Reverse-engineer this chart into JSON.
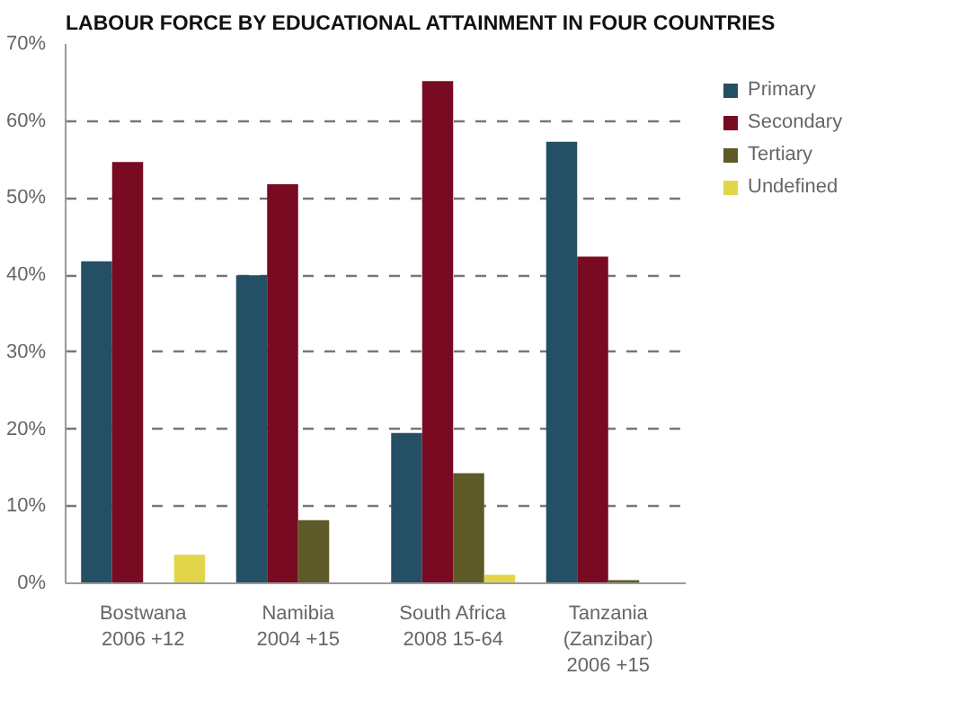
{
  "chart_data": {
    "type": "bar",
    "title": "LABOUR FORCE BY EDUCATIONAL ATTAINMENT IN FOUR COUNTRIES",
    "categories": [
      "Bostwana\n2006 +12",
      "Namibia\n2004 +15",
      "South Africa\n2008 15-64",
      "Tanzania\n(Zanzibar)\n2006 +15"
    ],
    "series": [
      {
        "name": "Primary",
        "color": "#244f64",
        "values": [
          41.8,
          40.0,
          19.5,
          57.3
        ]
      },
      {
        "name": "Secondary",
        "color": "#780a22",
        "values": [
          54.7,
          51.8,
          65.2,
          42.4
        ]
      },
      {
        "name": "Tertiary",
        "color": "#5d5a27",
        "values": [
          null,
          8.2,
          14.3,
          0.4
        ]
      },
      {
        "name": "Undefined",
        "color": "#e2d54a",
        "values": [
          3.7,
          null,
          1.1,
          null
        ]
      }
    ],
    "ylim": [
      0,
      70
    ],
    "yticks": [
      {
        "value": 0,
        "label": "0%"
      },
      {
        "value": 10,
        "label": "10%"
      },
      {
        "value": 20,
        "label": "20%"
      },
      {
        "value": 30,
        "label": "30%"
      },
      {
        "value": 40,
        "label": "40%"
      },
      {
        "value": 50,
        "label": "50%"
      },
      {
        "value": 60,
        "label": "60%"
      },
      {
        "value": 70,
        "label": "70%"
      }
    ],
    "grid": "y",
    "legend": "right"
  }
}
